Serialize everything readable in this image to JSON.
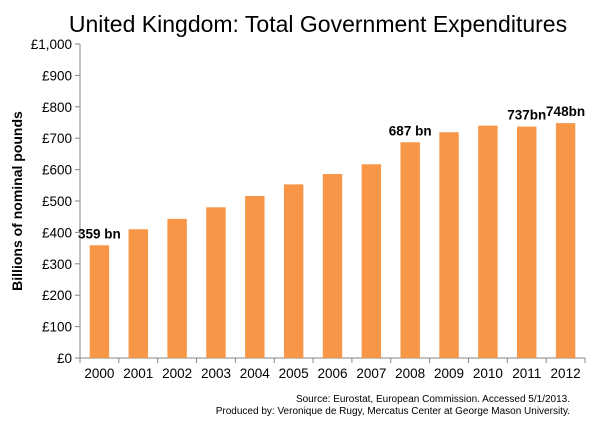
{
  "chart_data": {
    "type": "bar",
    "title": "United Kingdom: Total Government Expenditures",
    "ylabel": "Billions of nominal pounds",
    "xlabel": "",
    "categories": [
      "2000",
      "2001",
      "2002",
      "2003",
      "2004",
      "2005",
      "2006",
      "2007",
      "2008",
      "2009",
      "2010",
      "2011",
      "2012"
    ],
    "values": [
      359,
      410,
      443,
      480,
      516,
      553,
      586,
      617,
      687,
      719,
      740,
      737,
      748
    ],
    "ylim": [
      0,
      1000
    ],
    "yticks": [
      0,
      100,
      200,
      300,
      400,
      500,
      600,
      700,
      800,
      900,
      1000
    ],
    "ytick_labels": [
      "£0",
      "£100",
      "£200",
      "£300",
      "£400",
      "£500",
      "£600",
      "£700",
      "£800",
      "£900",
      "£1,000"
    ],
    "data_labels": [
      {
        "category": "2000",
        "text": "359 bn"
      },
      {
        "category": "2008",
        "text": "687 bn"
      },
      {
        "category": "2011",
        "text": "737bn"
      },
      {
        "category": "2012",
        "text": "748bn"
      }
    ],
    "bar_color": "#F79646",
    "grid": false,
    "legend": "none"
  },
  "source_lines": [
    "Source: Eurostat, European Commission. Accessed 5/1/2013.",
    "Produced by: Veronique de Rugy, Mercatus Center at George Mason University."
  ]
}
